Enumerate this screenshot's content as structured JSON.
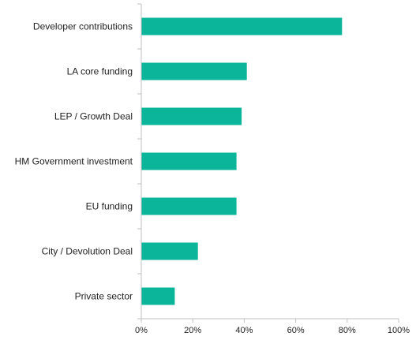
{
  "chart_data": {
    "type": "bar",
    "orientation": "horizontal",
    "categories": [
      "Developer contributions",
      "LA core funding",
      "LEP / Growth Deal",
      "HM Government investment",
      "EU funding",
      "City / Devolution Deal",
      "Private sector"
    ],
    "values": [
      78,
      41,
      39,
      37,
      37,
      22,
      13
    ],
    "value_unit": "%",
    "xlim": [
      0,
      100
    ],
    "x_ticks": [
      0,
      20,
      40,
      60,
      80,
      100
    ],
    "x_tick_labels": [
      "0%",
      "20%",
      "40%",
      "60%",
      "80%",
      "100%"
    ],
    "bar_color": "#0ab59a",
    "axis_color": "#bfbfbf",
    "grid": false,
    "legend": "none",
    "title": "",
    "xlabel": "",
    "ylabel": ""
  }
}
